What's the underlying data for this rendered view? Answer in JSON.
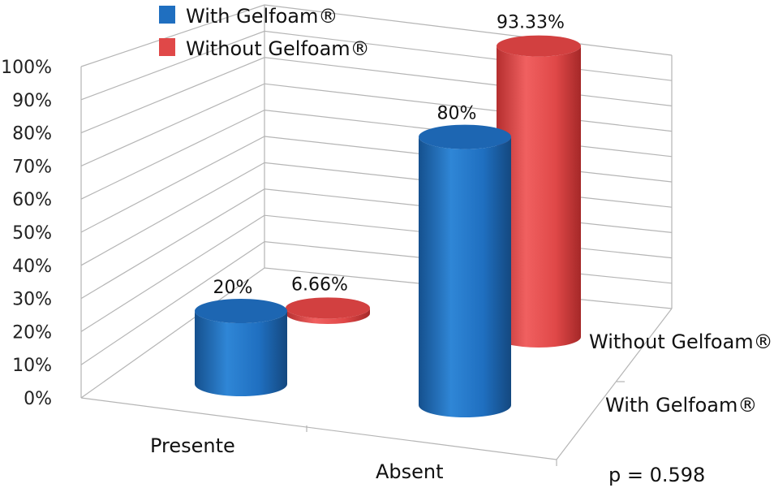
{
  "chart_data": {
    "type": "bar",
    "style": "3d-cylinder",
    "categories": [
      "Presente",
      "Absent"
    ],
    "series": [
      {
        "name": "With Gelfoam®",
        "color": "#1f6fc0",
        "values": [
          20,
          80
        ],
        "labels": [
          "20%",
          "80%"
        ]
      },
      {
        "name": "Without Gelfoam®",
        "color": "#e04848",
        "values": [
          6.66,
          93.33
        ],
        "labels": [
          "6.66%",
          "93.33%"
        ]
      }
    ],
    "depth_labels": [
      "Without Gelfoam®",
      "With Gelfoam®"
    ],
    "ylim": [
      0,
      100
    ],
    "yticks": [
      "0%",
      "10%",
      "20%",
      "30%",
      "40%",
      "50%",
      "60%",
      "70%",
      "80%",
      "90%",
      "100%"
    ],
    "grid": true,
    "legend": "top-left",
    "annotation": "p = 0.598"
  }
}
